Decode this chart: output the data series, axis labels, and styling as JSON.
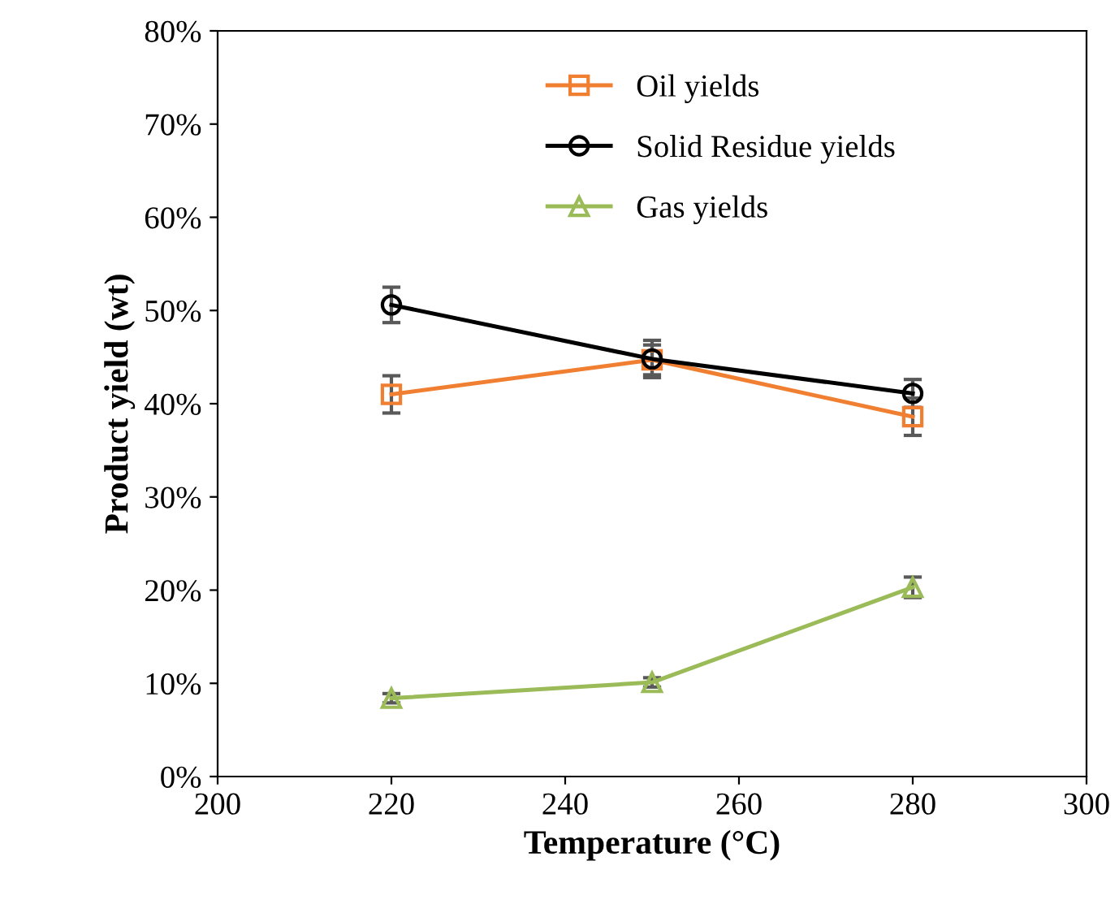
{
  "chart_data": {
    "type": "line",
    "xlabel": "Temperature (°C)",
    "ylabel": "Product yield (wt)",
    "x": [
      220,
      250,
      280
    ],
    "series": [
      {
        "name": "Oil yields",
        "color": "#f07f32",
        "marker": "square",
        "values": [
          41.0,
          44.7,
          38.6
        ],
        "errors": [
          2.0,
          1.6,
          2.0
        ]
      },
      {
        "name": "Solid Residue yields",
        "color": "#000000",
        "marker": "circle",
        "values": [
          50.6,
          44.8,
          41.1
        ],
        "errors": [
          1.9,
          2.0,
          1.5
        ]
      },
      {
        "name": "Gas yields",
        "color": "#9bbb59",
        "marker": "triangle",
        "values": [
          8.4,
          10.1,
          20.3
        ],
        "errors": [
          0.5,
          0.5,
          1.1
        ]
      }
    ],
    "xlim": [
      200,
      300
    ],
    "xticks": [
      200,
      220,
      240,
      260,
      280,
      300
    ],
    "ylim": [
      0,
      80
    ],
    "yticks": [
      {
        "value": 0,
        "label": "0%"
      },
      {
        "value": 10,
        "label": "10%"
      },
      {
        "value": 20,
        "label": "20%"
      },
      {
        "value": 30,
        "label": "30%"
      },
      {
        "value": 40,
        "label": "40%"
      },
      {
        "value": 50,
        "label": "50%"
      },
      {
        "value": 60,
        "label": "60%"
      },
      {
        "value": 70,
        "label": "70%"
      },
      {
        "value": 80,
        "label": "80%"
      }
    ],
    "grid": false,
    "legend": "top",
    "line_style": "solid"
  }
}
